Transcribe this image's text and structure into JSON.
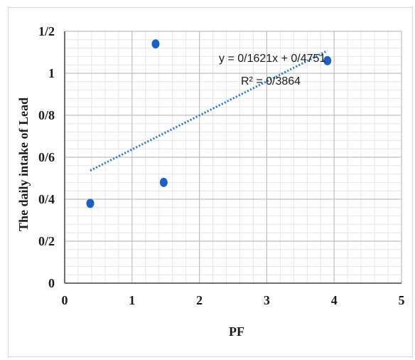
{
  "chart_data": {
    "type": "scatter",
    "xlabel": "PF",
    "ylabel": "The daily intake of Lead",
    "xlim": [
      0,
      5
    ],
    "ylim": [
      0,
      1.2
    ],
    "x_ticks": [
      "0",
      "1",
      "2",
      "3",
      "4",
      "5"
    ],
    "y_ticks": [
      "0",
      "0/2",
      "0/4",
      "0/6",
      "0/8",
      "1",
      "1/2"
    ],
    "grid": true,
    "series": [
      {
        "points": [
          {
            "x": 0.38,
            "y": 0.38
          },
          {
            "x": 1.35,
            "y": 1.14
          },
          {
            "x": 1.47,
            "y": 0.48
          },
          {
            "x": 3.9,
            "y": 1.06
          }
        ],
        "color": "#1f5fbf"
      }
    ],
    "trendline": {
      "type": "linear",
      "slope": 0.1621,
      "intercept": 0.4751,
      "x_range": [
        0.38,
        3.9
      ],
      "color": "#2e75c7",
      "style": "dotted",
      "equation_label": "y = 0/1621x + 0/4751",
      "r2_label": "R² = 0/3864"
    }
  }
}
